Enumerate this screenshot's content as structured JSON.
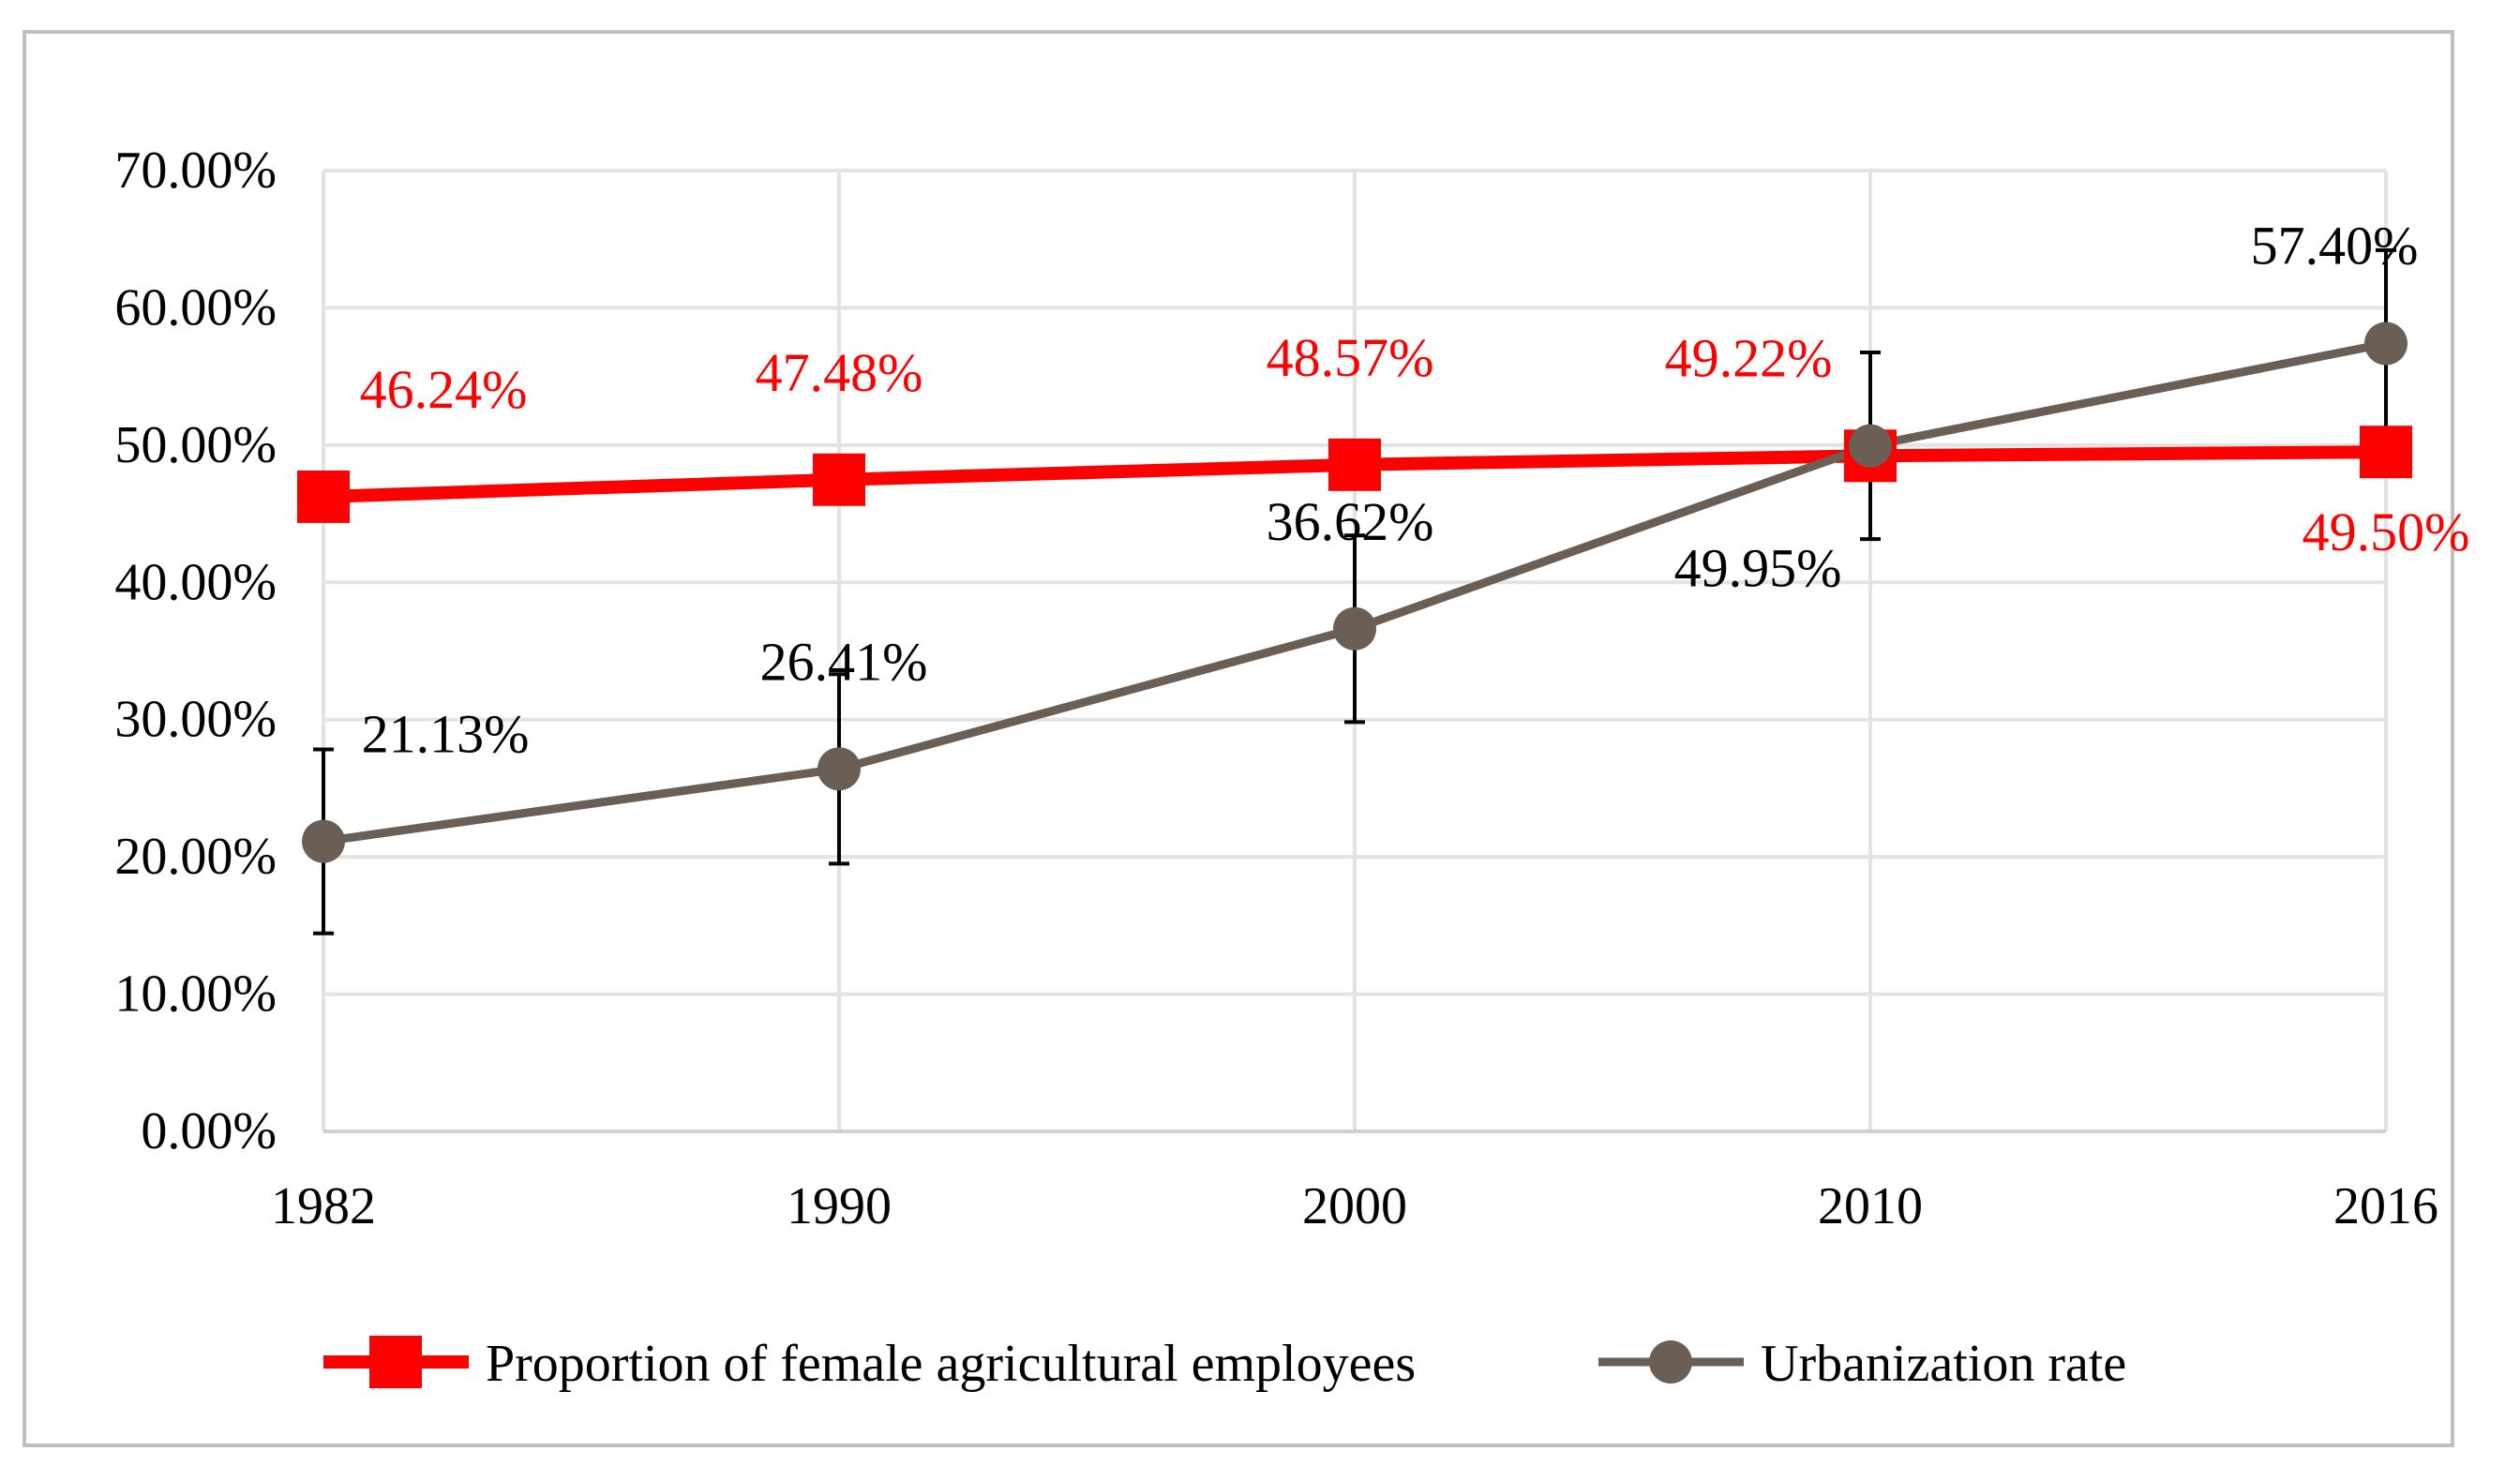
{
  "chart_data": {
    "type": "line",
    "title": "",
    "xlabel": "",
    "ylabel": "",
    "categories": [
      "1982",
      "1990",
      "2000",
      "2010",
      "2016"
    ],
    "ylim": [
      0,
      0.7
    ],
    "yticks": [
      "0.00%",
      "10.00%",
      "20.00%",
      "30.00%",
      "40.00%",
      "50.00%",
      "60.00%",
      "70.00%"
    ],
    "grid": true,
    "legend_position": "bottom",
    "series": [
      {
        "name": "Proportion of female agricultural employees",
        "values": [
          0.4624,
          0.4748,
          0.4857,
          0.4922,
          0.495
        ],
        "labels": [
          "46.24%",
          "47.48%",
          "48.57%",
          "49.22%",
          "49.50%"
        ],
        "color": "#ff0000",
        "marker": "square"
      },
      {
        "name": "Urbanization rate",
        "values": [
          0.2113,
          0.2641,
          0.3662,
          0.4995,
          0.574
        ],
        "labels": [
          "21.13%",
          "26.41%",
          "36.62%",
          "49.95%",
          "57.40%"
        ],
        "error": [
          0.067,
          0.069,
          0.068,
          0.068,
          0.068
        ],
        "color": "#6b5e55",
        "marker": "circle"
      }
    ]
  }
}
